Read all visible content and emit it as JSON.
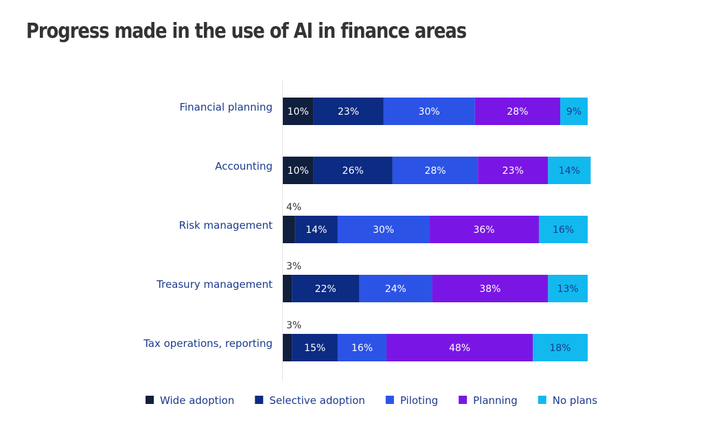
{
  "title": "Progress made in the use of AI in finance areas",
  "chart_data": {
    "type": "bar",
    "orientation": "horizontal",
    "stacked": true,
    "title": "Progress made in the use of AI in finance areas",
    "xlim": [
      0,
      100
    ],
    "grid": false,
    "legend_position": "bottom",
    "categories": [
      "Financial planning",
      "Accounting",
      "Risk management",
      "Treasury management",
      "Tax operations, reporting"
    ],
    "series": [
      {
        "name": "Wide adoption",
        "color": "#0f1f3d",
        "label_color": "#ffffff",
        "values": [
          10,
          10,
          4,
          3,
          3
        ],
        "value_labels": [
          "10%",
          "10%",
          "4%",
          "3%",
          "3%"
        ]
      },
      {
        "name": "Selective adoption",
        "color": "#0c2b82",
        "label_color": "#ffffff",
        "values": [
          23,
          26,
          14,
          22,
          15
        ],
        "value_labels": [
          "23%",
          "26%",
          "14%",
          "22%",
          "15%"
        ]
      },
      {
        "name": "Piloting",
        "color": "#2b53e6",
        "label_color": "#ffffff",
        "values": [
          30,
          28,
          30,
          24,
          16
        ],
        "value_labels": [
          "30%",
          "28%",
          "30%",
          "24%",
          "16%"
        ]
      },
      {
        "name": "Planning",
        "color": "#7a16e5",
        "label_color": "#ffffff",
        "values": [
          28,
          23,
          36,
          38,
          48
        ],
        "value_labels": [
          "28%",
          "23%",
          "36%",
          "38%",
          "48%"
        ]
      },
      {
        "name": "No plans",
        "color": "#12b9ee",
        "label_color": "#1a3a8c",
        "values": [
          9,
          14,
          16,
          13,
          18
        ],
        "value_labels": [
          "9%",
          "14%",
          "16%",
          "13%",
          "18%"
        ]
      }
    ]
  }
}
